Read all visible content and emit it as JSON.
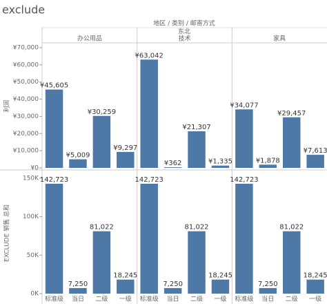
{
  "title": "exclude",
  "chart_data": {
    "type": "bar",
    "header": "地区 / 类别 / 邮寄方式",
    "region": "东北",
    "panels": [
      "办公用品",
      "技术",
      "家具"
    ],
    "categories": [
      "标准级",
      "当日",
      "二级",
      "一级"
    ],
    "color": "#4e79a7",
    "rows": [
      {
        "ylabel": "利润",
        "ylim": [
          0,
          72000
        ],
        "yticks": [
          {
            "value": 0,
            "label": "¥0"
          },
          {
            "value": 10000,
            "label": "¥10,000"
          },
          {
            "value": 20000,
            "label": "¥20,000"
          },
          {
            "value": 30000,
            "label": "¥30,000"
          },
          {
            "value": 40000,
            "label": "¥40,000"
          },
          {
            "value": 50000,
            "label": "¥50,000"
          },
          {
            "value": 60000,
            "label": "¥60,000"
          },
          {
            "value": 70000,
            "label": "¥70,000"
          }
        ],
        "values": [
          [
            45605,
            5009,
            30259,
            9297
          ],
          [
            63042,
            362,
            21307,
            1335
          ],
          [
            34077,
            1878,
            29457,
            7613
          ]
        ],
        "value_labels": [
          [
            "¥45,605",
            "¥5,009",
            "¥30,259",
            "¥9,297"
          ],
          [
            "¥63,042",
            "¥362",
            "¥21,307",
            "¥1,335"
          ],
          [
            "¥34,077",
            "¥1,878",
            "¥29,457",
            "¥7,613"
          ]
        ]
      },
      {
        "ylabel": "EXCLUDE 销售 总和",
        "ylim": [
          0,
          157000
        ],
        "yticks": [
          {
            "value": 0,
            "label": "0K"
          },
          {
            "value": 50000,
            "label": "50K"
          },
          {
            "value": 100000,
            "label": "100K"
          },
          {
            "value": 150000,
            "label": "150K"
          }
        ],
        "values": [
          [
            142723,
            7250,
            81022,
            18245
          ],
          [
            142723,
            7250,
            81022,
            18245
          ],
          [
            142723,
            7250,
            81022,
            18245
          ]
        ],
        "value_labels": [
          [
            "142,723",
            "7,250",
            "81,022",
            "18,245"
          ],
          [
            "142,723",
            "7,250",
            "81,022",
            "18,245"
          ],
          [
            "142,723",
            "7,250",
            "81,022",
            "18,245"
          ]
        ]
      }
    ]
  }
}
